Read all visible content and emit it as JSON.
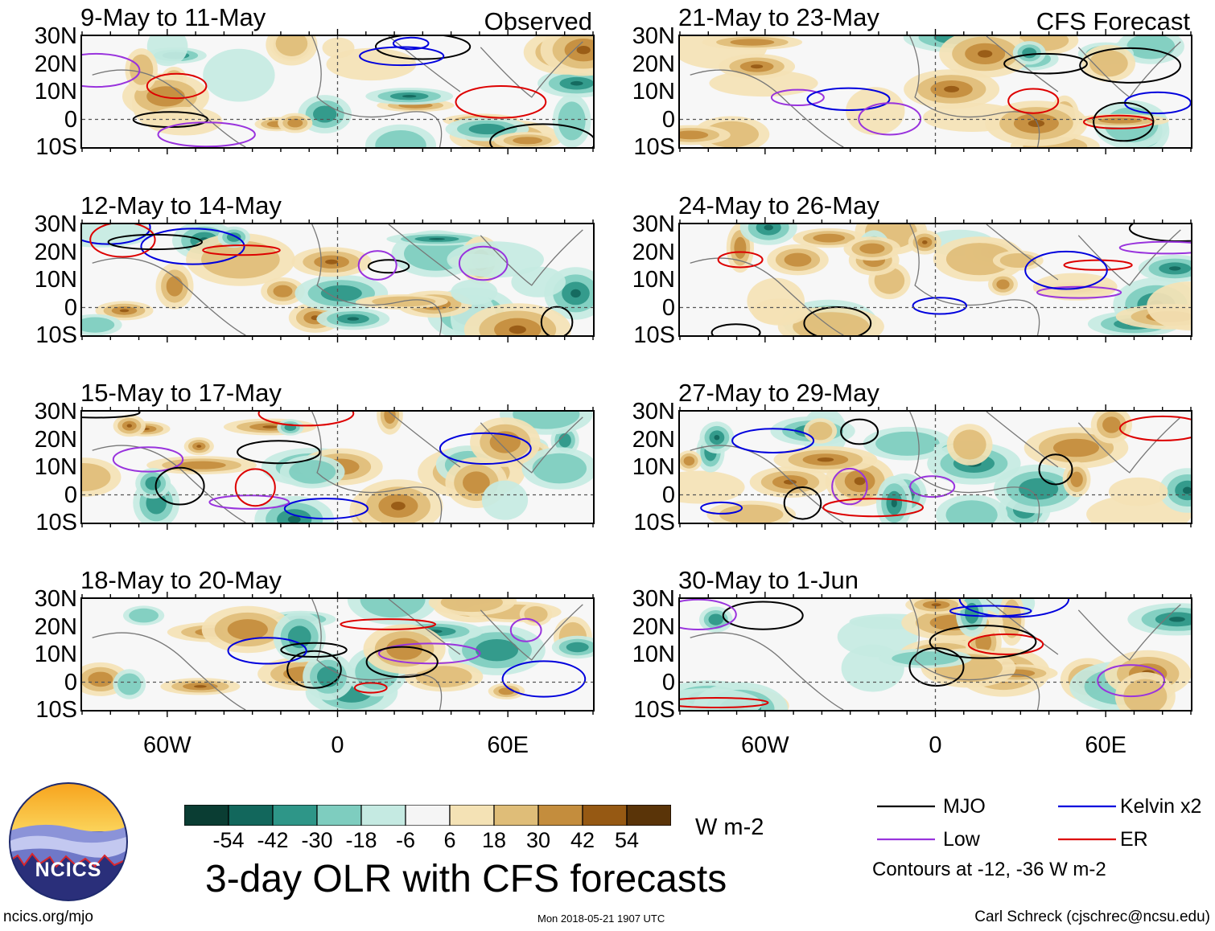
{
  "chart_data": {
    "type": "heatmap",
    "title": "3-day OLR with CFS forecasts",
    "units": "W m-2",
    "columns": [
      {
        "tag": "Observed"
      },
      {
        "tag": "CFS Forecast"
      }
    ],
    "panels": [
      {
        "period": "9-May to 11-May",
        "source": "Observed"
      },
      {
        "period": "12-May to 14-May",
        "source": "Observed"
      },
      {
        "period": "15-May to 17-May",
        "source": "Observed"
      },
      {
        "period": "18-May to 20-May",
        "source": "Observed"
      },
      {
        "period": "21-May to 23-May",
        "source": "CFS Forecast"
      },
      {
        "period": "24-May to 26-May",
        "source": "CFS Forecast"
      },
      {
        "period": "27-May to 29-May",
        "source": "CFS Forecast"
      },
      {
        "period": "30-May to 1-Jun",
        "source": "CFS Forecast"
      }
    ],
    "lat_ticks": [
      "30N",
      "20N",
      "10N",
      "0",
      "10S"
    ],
    "lon_ticks": [
      "60W",
      "0",
      "60E"
    ],
    "lon_range": [
      -90,
      90
    ],
    "lat_range": [
      -10,
      30
    ],
    "colorbar": {
      "labels": [
        "-54",
        "-42",
        "-30",
        "-18",
        "-6",
        "6",
        "18",
        "30",
        "42",
        "54"
      ],
      "colors": [
        "#0a3d33",
        "#12675c",
        "#2e9688",
        "#7ecdbf",
        "#c5eae2",
        "#f5f5f5",
        "#f4e2b5",
        "#dfbd78",
        "#c48d3d",
        "#965913",
        "#5a3408"
      ]
    },
    "legend": {
      "entries": [
        {
          "name": "MJO",
          "color": "#000000"
        },
        {
          "name": "Kelvin x2",
          "color": "#0000dd"
        },
        {
          "name": "Low",
          "color": "#9933dd"
        },
        {
          "name": "ER",
          "color": "#dd0000"
        }
      ],
      "note": "Contours at -12, -36 W m-2"
    }
  },
  "footer": {
    "logo_text": "NCICS",
    "site": "ncics.org/mjo",
    "timestamp": "Mon 2018-05-21 1907 UTC",
    "author": "Carl Schreck (cjschrec@ncsu.edu)"
  }
}
